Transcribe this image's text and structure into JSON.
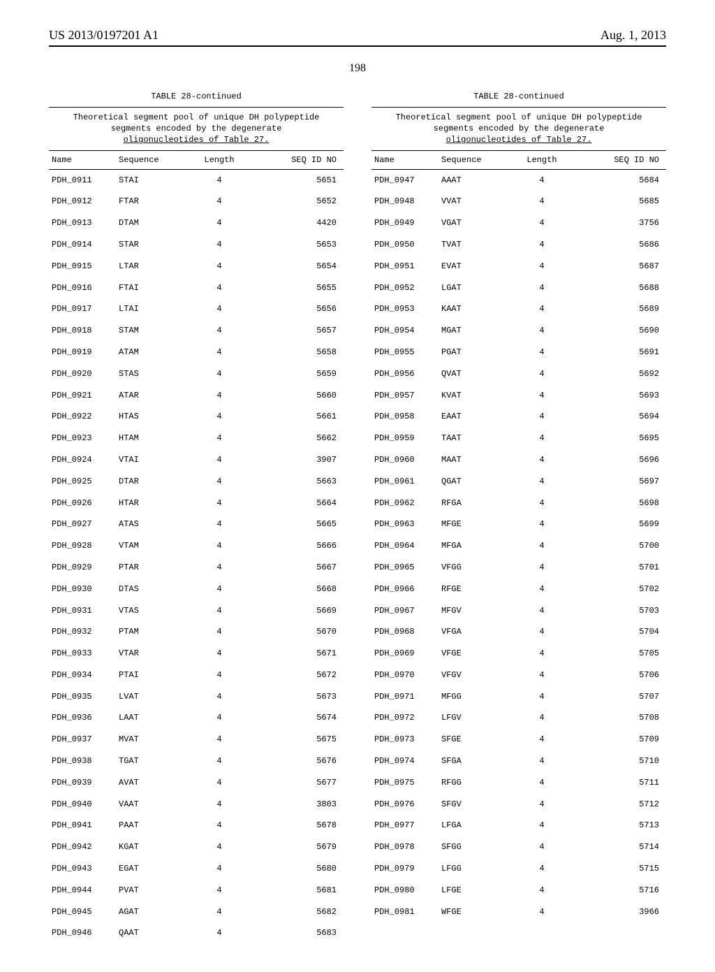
{
  "header": {
    "pub_number": "US 2013/0197201 A1",
    "pub_date": "Aug. 1, 2013"
  },
  "page_number": "198",
  "table": {
    "title": "TABLE 28-continued",
    "caption_line1": "Theoretical segment pool of unique DH polypeptide",
    "caption_line2": "segments encoded by the degenerate",
    "caption_line3": "oligonucleotides of Table 27.",
    "columns": {
      "name": "Name",
      "sequence": "Sequence",
      "length": "Length",
      "seq_id": "SEQ ID NO"
    }
  },
  "left_rows": [
    {
      "name": "PDH_0911",
      "seq": "STAI",
      "len": "4",
      "sid": "5651"
    },
    {
      "name": "PDH_0912",
      "seq": "FTAR",
      "len": "4",
      "sid": "5652"
    },
    {
      "name": "PDH_0913",
      "seq": "DTAM",
      "len": "4",
      "sid": "4420"
    },
    {
      "name": "PDH_0914",
      "seq": "STAR",
      "len": "4",
      "sid": "5653"
    },
    {
      "name": "PDH_0915",
      "seq": "LTAR",
      "len": "4",
      "sid": "5654"
    },
    {
      "name": "PDH_0916",
      "seq": "FTAI",
      "len": "4",
      "sid": "5655"
    },
    {
      "name": "PDH_0917",
      "seq": "LTAI",
      "len": "4",
      "sid": "5656"
    },
    {
      "name": "PDH_0918",
      "seq": "STAM",
      "len": "4",
      "sid": "5657"
    },
    {
      "name": "PDH_0919",
      "seq": "ATAM",
      "len": "4",
      "sid": "5658"
    },
    {
      "name": "PDH_0920",
      "seq": "STAS",
      "len": "4",
      "sid": "5659"
    },
    {
      "name": "PDH_0921",
      "seq": "ATAR",
      "len": "4",
      "sid": "5660"
    },
    {
      "name": "PDH_0922",
      "seq": "HTAS",
      "len": "4",
      "sid": "5661"
    },
    {
      "name": "PDH_0923",
      "seq": "HTAM",
      "len": "4",
      "sid": "5662"
    },
    {
      "name": "PDH_0924",
      "seq": "VTAI",
      "len": "4",
      "sid": "3907"
    },
    {
      "name": "PDH_0925",
      "seq": "DTAR",
      "len": "4",
      "sid": "5663"
    },
    {
      "name": "PDH_0926",
      "seq": "HTAR",
      "len": "4",
      "sid": "5664"
    },
    {
      "name": "PDH_0927",
      "seq": "ATAS",
      "len": "4",
      "sid": "5665"
    },
    {
      "name": "PDH_0928",
      "seq": "VTAM",
      "len": "4",
      "sid": "5666"
    },
    {
      "name": "PDH_0929",
      "seq": "PTAR",
      "len": "4",
      "sid": "5667"
    },
    {
      "name": "PDH_0930",
      "seq": "DTAS",
      "len": "4",
      "sid": "5668"
    },
    {
      "name": "PDH_0931",
      "seq": "VTAS",
      "len": "4",
      "sid": "5669"
    },
    {
      "name": "PDH_0932",
      "seq": "PTAM",
      "len": "4",
      "sid": "5670"
    },
    {
      "name": "PDH_0933",
      "seq": "VTAR",
      "len": "4",
      "sid": "5671"
    },
    {
      "name": "PDH_0934",
      "seq": "PTAI",
      "len": "4",
      "sid": "5672"
    },
    {
      "name": "PDH_0935",
      "seq": "LVAT",
      "len": "4",
      "sid": "5673"
    },
    {
      "name": "PDH_0936",
      "seq": "LAAT",
      "len": "4",
      "sid": "5674"
    },
    {
      "name": "PDH_0937",
      "seq": "MVAT",
      "len": "4",
      "sid": "5675"
    },
    {
      "name": "PDH_0938",
      "seq": "TGAT",
      "len": "4",
      "sid": "5676"
    },
    {
      "name": "PDH_0939",
      "seq": "AVAT",
      "len": "4",
      "sid": "5677"
    },
    {
      "name": "PDH_0940",
      "seq": "VAAT",
      "len": "4",
      "sid": "3803"
    },
    {
      "name": "PDH_0941",
      "seq": "PAAT",
      "len": "4",
      "sid": "5678"
    },
    {
      "name": "PDH_0942",
      "seq": "KGAT",
      "len": "4",
      "sid": "5679"
    },
    {
      "name": "PDH_0943",
      "seq": "EGAT",
      "len": "4",
      "sid": "5680"
    },
    {
      "name": "PDH_0944",
      "seq": "PVAT",
      "len": "4",
      "sid": "5681"
    },
    {
      "name": "PDH_0945",
      "seq": "AGAT",
      "len": "4",
      "sid": "5682"
    },
    {
      "name": "PDH_0946",
      "seq": "QAAT",
      "len": "4",
      "sid": "5683"
    }
  ],
  "right_rows": [
    {
      "name": "PDH_0947",
      "seq": "AAAT",
      "len": "4",
      "sid": "5684"
    },
    {
      "name": "PDH_0948",
      "seq": "VVAT",
      "len": "4",
      "sid": "5685"
    },
    {
      "name": "PDH_0949",
      "seq": "VGAT",
      "len": "4",
      "sid": "3756"
    },
    {
      "name": "PDH_0950",
      "seq": "TVAT",
      "len": "4",
      "sid": "5686"
    },
    {
      "name": "PDH_0951",
      "seq": "EVAT",
      "len": "4",
      "sid": "5687"
    },
    {
      "name": "PDH_0952",
      "seq": "LGAT",
      "len": "4",
      "sid": "5688"
    },
    {
      "name": "PDH_0953",
      "seq": "KAAT",
      "len": "4",
      "sid": "5689"
    },
    {
      "name": "PDH_0954",
      "seq": "MGAT",
      "len": "4",
      "sid": "5690"
    },
    {
      "name": "PDH_0955",
      "seq": "PGAT",
      "len": "4",
      "sid": "5691"
    },
    {
      "name": "PDH_0956",
      "seq": "QVAT",
      "len": "4",
      "sid": "5692"
    },
    {
      "name": "PDH_0957",
      "seq": "KVAT",
      "len": "4",
      "sid": "5693"
    },
    {
      "name": "PDH_0958",
      "seq": "EAAT",
      "len": "4",
      "sid": "5694"
    },
    {
      "name": "PDH_0959",
      "seq": "TAAT",
      "len": "4",
      "sid": "5695"
    },
    {
      "name": "PDH_0960",
      "seq": "MAAT",
      "len": "4",
      "sid": "5696"
    },
    {
      "name": "PDH_0961",
      "seq": "QGAT",
      "len": "4",
      "sid": "5697"
    },
    {
      "name": "PDH_0962",
      "seq": "RFGA",
      "len": "4",
      "sid": "5698"
    },
    {
      "name": "PDH_0963",
      "seq": "MFGE",
      "len": "4",
      "sid": "5699"
    },
    {
      "name": "PDH_0964",
      "seq": "MFGA",
      "len": "4",
      "sid": "5700"
    },
    {
      "name": "PDH_0965",
      "seq": "VFGG",
      "len": "4",
      "sid": "5701"
    },
    {
      "name": "PDH_0966",
      "seq": "RFGE",
      "len": "4",
      "sid": "5702"
    },
    {
      "name": "PDH_0967",
      "seq": "MFGV",
      "len": "4",
      "sid": "5703"
    },
    {
      "name": "PDH_0968",
      "seq": "VFGA",
      "len": "4",
      "sid": "5704"
    },
    {
      "name": "PDH_0969",
      "seq": "VFGE",
      "len": "4",
      "sid": "5705"
    },
    {
      "name": "PDH_0970",
      "seq": "VFGV",
      "len": "4",
      "sid": "5706"
    },
    {
      "name": "PDH_0971",
      "seq": "MFGG",
      "len": "4",
      "sid": "5707"
    },
    {
      "name": "PDH_0972",
      "seq": "LFGV",
      "len": "4",
      "sid": "5708"
    },
    {
      "name": "PDH_0973",
      "seq": "SFGE",
      "len": "4",
      "sid": "5709"
    },
    {
      "name": "PDH_0974",
      "seq": "SFGA",
      "len": "4",
      "sid": "5710"
    },
    {
      "name": "PDH_0975",
      "seq": "RFGG",
      "len": "4",
      "sid": "5711"
    },
    {
      "name": "PDH_0976",
      "seq": "SFGV",
      "len": "4",
      "sid": "5712"
    },
    {
      "name": "PDH_0977",
      "seq": "LFGA",
      "len": "4",
      "sid": "5713"
    },
    {
      "name": "PDH_0978",
      "seq": "SFGG",
      "len": "4",
      "sid": "5714"
    },
    {
      "name": "PDH_0979",
      "seq": "LFGG",
      "len": "4",
      "sid": "5715"
    },
    {
      "name": "PDH_0980",
      "seq": "LFGE",
      "len": "4",
      "sid": "5716"
    },
    {
      "name": "PDH_0981",
      "seq": "WFGE",
      "len": "4",
      "sid": "3966"
    }
  ]
}
